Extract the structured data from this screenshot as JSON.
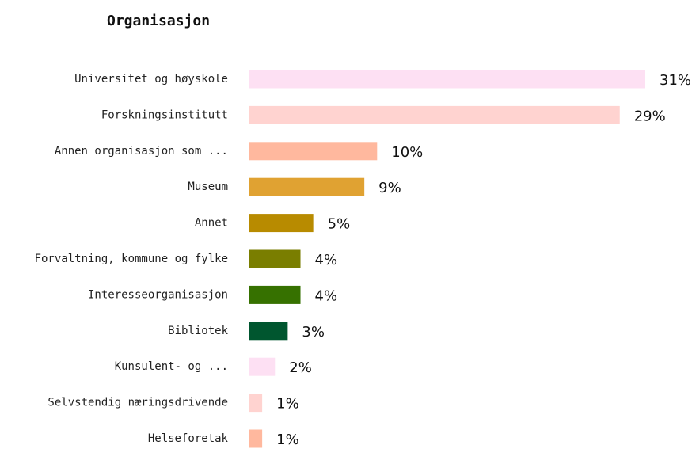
{
  "chart_data": {
    "type": "bar",
    "orientation": "horizontal",
    "title": "Organisasjon",
    "categories": [
      "Universitet og høyskole",
      "Forskningsinstitutt",
      "Annen organisasjon som ...",
      "Museum",
      "Annet",
      "Forvaltning, kommune og fylke",
      "Interesseorganisasjon",
      "Bibliotek",
      "Kunsulent- og ...",
      "Selvstendig næringsdrivende",
      "Helseforetak"
    ],
    "values": [
      31,
      29,
      10,
      9,
      5,
      4,
      4,
      3,
      2,
      1,
      1
    ],
    "value_labels": [
      "31%",
      "29%",
      "10%",
      "9%",
      "5%",
      "4%",
      "4%",
      "3%",
      "2%",
      "1%",
      "1%"
    ],
    "colors": [
      "#fde0f3",
      "#ffd3d0",
      "#ffb89e",
      "#e0a232",
      "#b88b00",
      "#7a7e00",
      "#367100",
      "#00562f",
      "#fde0f3",
      "#ffd3d0",
      "#ffb89e"
    ]
  }
}
